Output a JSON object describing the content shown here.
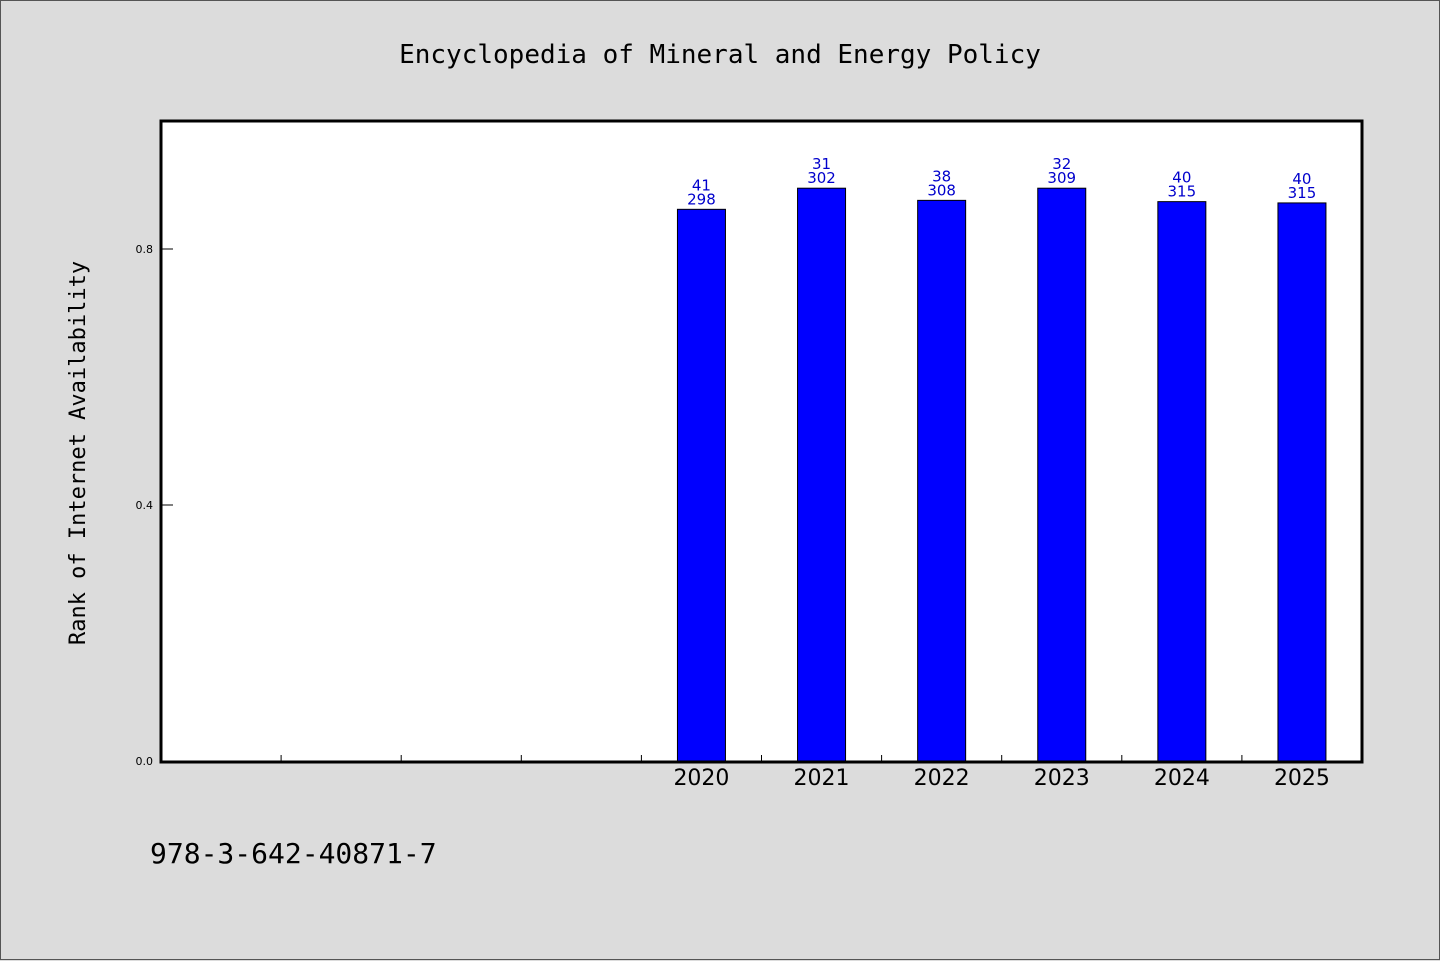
{
  "footer_text": "978-3-642-40871-7",
  "colors": {
    "background": "#dcdcdc",
    "plot_area": "#ffffff",
    "bar_fill": "#0000ff",
    "bar_label": "#0000cc"
  },
  "chart_data": {
    "type": "bar",
    "title": "Encyclopedia of Mineral and Energy Policy",
    "xlabel": "",
    "ylabel": "Rank of Internet Availability",
    "categories": [
      "2020",
      "2021",
      "2022",
      "2023",
      "2024",
      "2025"
    ],
    "empty_slots_before": 4,
    "values": [
      0.862,
      0.895,
      0.876,
      0.895,
      0.874,
      0.872
    ],
    "label_top": [
      "41",
      "31",
      "38",
      "32",
      "40",
      "40"
    ],
    "label_bottom": [
      "298",
      "302",
      "308",
      "309",
      "315",
      "315"
    ],
    "ylim": [
      0,
      1.0
    ],
    "yticks": [
      "0.0",
      "0.4",
      "0.8"
    ],
    "ytick_values": [
      0.0,
      0.4,
      0.8
    ],
    "grid": false,
    "legend": "none"
  }
}
